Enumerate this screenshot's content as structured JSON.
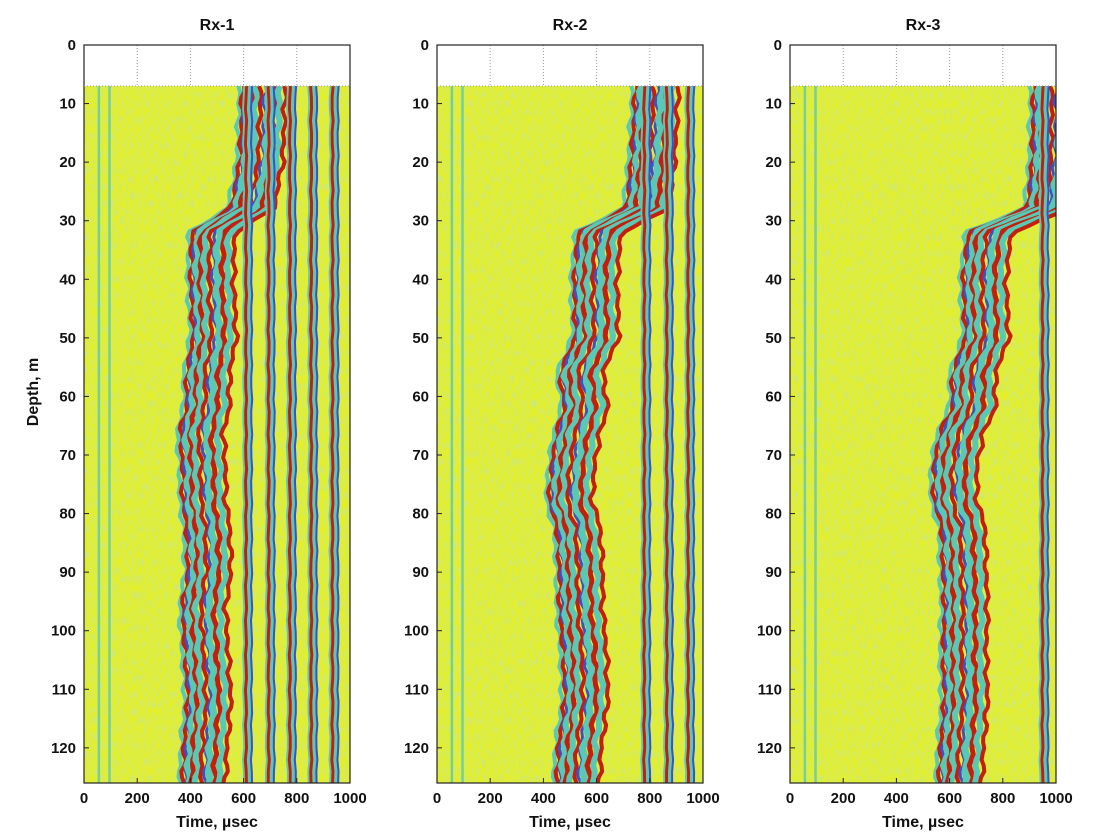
{
  "chart_data": [
    {
      "type": "heatmap",
      "title": "Rx-1",
      "xlabel": "Time,  µsec",
      "ylabel": "Depth, m",
      "xlim": [
        0,
        1000
      ],
      "ylim": [
        0,
        126
      ],
      "xticks": [
        0,
        200,
        400,
        600,
        800,
        1000
      ],
      "yticks": [
        0,
        10,
        20,
        30,
        40,
        50,
        60,
        70,
        80,
        90,
        100,
        110,
        120
      ],
      "data_depth_range": [
        7,
        126
      ],
      "arrival_picks": {
        "depth": [
          8,
          20,
          28,
          32,
          40,
          50,
          56,
          62,
          66,
          72,
          78,
          82,
          90,
          96,
          104,
          112,
          120,
          125
        ],
        "time": [
          585,
          575,
          540,
          395,
          390,
          400,
          375,
          375,
          350,
          360,
          360,
          375,
          380,
          360,
          370,
          380,
          365,
          360
        ]
      },
      "strong_phase_times": [
        615,
        700,
        780,
        860,
        940
      ],
      "grid": true,
      "colors": {
        "background": "#e3ef2a",
        "positive": "#c41e0c",
        "negative": "#3d50c8",
        "moderate": "#59c8b4"
      }
    },
    {
      "type": "heatmap",
      "title": "Rx-2",
      "xlabel": "Time,  µsec",
      "ylabel": "",
      "xlim": [
        0,
        1000
      ],
      "ylim": [
        0,
        126
      ],
      "xticks": [
        0,
        200,
        400,
        600,
        800,
        1000
      ],
      "yticks": [
        0,
        10,
        20,
        30,
        40,
        50,
        60,
        70,
        80,
        90,
        100,
        110,
        120
      ],
      "data_depth_range": [
        7,
        126
      ],
      "arrival_picks": {
        "depth": [
          8,
          20,
          28,
          32,
          40,
          50,
          56,
          62,
          66,
          72,
          78,
          82,
          90,
          96,
          104,
          112,
          120,
          125
        ],
        "time": [
          735,
          720,
          700,
          520,
          505,
          510,
          450,
          470,
          440,
          420,
          410,
          440,
          450,
          450,
          465,
          470,
          445,
          440
        ]
      },
      "strong_phase_times": [
        785,
        870,
        950
      ],
      "grid": true,
      "colors": {
        "background": "#e3ef2a",
        "positive": "#c41e0c",
        "negative": "#3d50c8",
        "moderate": "#59c8b4"
      }
    },
    {
      "type": "heatmap",
      "title": "Rx-3",
      "xlabel": "Time,  µsec",
      "ylabel": "",
      "xlim": [
        0,
        1000
      ],
      "ylim": [
        0,
        126
      ],
      "xticks": [
        0,
        200,
        400,
        600,
        800,
        1000
      ],
      "yticks": [
        0,
        10,
        20,
        30,
        40,
        50,
        60,
        70,
        80,
        90,
        100,
        110,
        120
      ],
      "data_depth_range": [
        7,
        126
      ],
      "arrival_picks": {
        "depth": [
          8,
          20,
          28,
          32,
          40,
          50,
          56,
          62,
          66,
          72,
          78,
          82,
          90,
          96,
          104,
          112,
          120,
          125
        ],
        "time": [
          905,
          900,
          880,
          660,
          640,
          650,
          600,
          600,
          555,
          530,
          530,
          560,
          565,
          570,
          565,
          570,
          555,
          550
        ]
      },
      "strong_phase_times": [
        955
      ],
      "grid": true,
      "colors": {
        "background": "#e3ef2a",
        "positive": "#c41e0c",
        "negative": "#3d50c8",
        "moderate": "#59c8b4"
      }
    }
  ]
}
